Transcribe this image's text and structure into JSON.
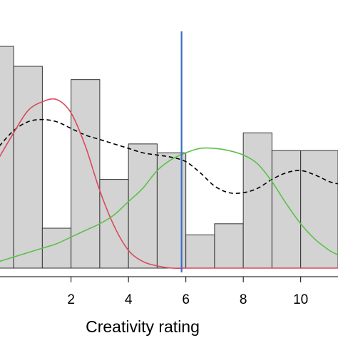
{
  "chart_data": {
    "type": "histogram",
    "xlabel": "Creativity rating",
    "ylabel": "",
    "xlim": [
      -0.5,
      11.3
    ],
    "ylim": [
      0,
      1.0
    ],
    "xticks": [
      2,
      4,
      6,
      8,
      10
    ],
    "xtick_labels": [
      "2",
      "4",
      "6",
      "8",
      "10"
    ],
    "bar_fill": "#d3d3d3",
    "bar_stroke": "#333333",
    "bars": [
      {
        "x0": -0.5,
        "x1": 0.0,
        "height": 1.0
      },
      {
        "x0": 0.0,
        "x1": 1.0,
        "height": 0.91
      },
      {
        "x0": 1.0,
        "x1": 2.0,
        "height": 0.18
      },
      {
        "x0": 2.0,
        "x1": 3.0,
        "height": 0.85
      },
      {
        "x0": 3.0,
        "x1": 4.0,
        "height": 0.4
      },
      {
        "x0": 4.0,
        "x1": 5.0,
        "height": 0.56
      },
      {
        "x0": 5.0,
        "x1": 6.0,
        "height": 0.52
      },
      {
        "x0": 6.0,
        "x1": 7.0,
        "height": 0.15
      },
      {
        "x0": 7.0,
        "x1": 8.0,
        "height": 0.2
      },
      {
        "x0": 8.0,
        "x1": 9.0,
        "height": 0.61
      },
      {
        "x0": 9.0,
        "x1": 10.0,
        "height": 0.53
      },
      {
        "x0": 10.0,
        "x1": 11.3,
        "height": 0.53
      }
    ],
    "vline": {
      "x": 5.85,
      "color": "#3a6fc4"
    },
    "series": [
      {
        "style": "dashed",
        "color": "#000000",
        "x": [
          -0.5,
          0,
          0.5,
          1.0,
          1.5,
          2.0,
          2.5,
          3.0,
          3.5,
          4.0,
          4.5,
          5.0,
          5.5,
          6.0,
          6.5,
          7.0,
          7.5,
          8.0,
          8.5,
          9.0,
          9.5,
          10.0,
          10.5,
          11.0,
          11.3
        ],
        "y": [
          0.55,
          0.62,
          0.66,
          0.67,
          0.66,
          0.63,
          0.6,
          0.58,
          0.56,
          0.54,
          0.52,
          0.51,
          0.5,
          0.48,
          0.43,
          0.37,
          0.34,
          0.34,
          0.36,
          0.4,
          0.43,
          0.44,
          0.42,
          0.39,
          0.38
        ]
      },
      {
        "style": "solid",
        "color": "#d94a5a",
        "x": [
          -0.5,
          0,
          0.5,
          1.0,
          1.5,
          2.0,
          2.5,
          3.0,
          3.5,
          4.0,
          4.5,
          5.0,
          5.5,
          6.0,
          7.0,
          8.0,
          9.0,
          10.0,
          11.3
        ],
        "y": [
          0.5,
          0.61,
          0.71,
          0.75,
          0.76,
          0.7,
          0.55,
          0.35,
          0.19,
          0.08,
          0.03,
          0.01,
          0.0,
          0.0,
          0.0,
          0.0,
          0.0,
          0.0,
          0.0
        ]
      },
      {
        "style": "solid",
        "color": "#5cc04a",
        "x": [
          -0.5,
          0,
          0.5,
          1.0,
          1.5,
          2.0,
          2.5,
          3.0,
          3.5,
          4.0,
          4.5,
          5.0,
          5.5,
          6.0,
          6.5,
          7.0,
          7.5,
          8.0,
          8.5,
          9.0,
          9.5,
          10.0,
          10.5,
          11.0,
          11.3
        ],
        "y": [
          0.03,
          0.05,
          0.07,
          0.09,
          0.11,
          0.14,
          0.17,
          0.2,
          0.24,
          0.3,
          0.36,
          0.44,
          0.49,
          0.52,
          0.54,
          0.54,
          0.53,
          0.51,
          0.47,
          0.39,
          0.29,
          0.2,
          0.13,
          0.08,
          0.06
        ]
      }
    ]
  }
}
